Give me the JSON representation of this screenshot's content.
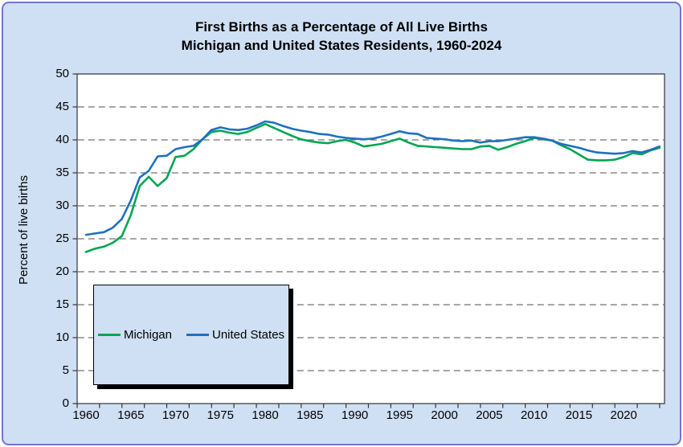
{
  "window": {
    "page_background": "#ffffff",
    "card_background": "#cfe0f4",
    "card_border_color": "#7476c8",
    "plot_background": "#ffffff",
    "gridline_color": "#707070"
  },
  "title": {
    "line1": "First Births as a Percentage of All Live Births",
    "line2": "Michigan and United States Residents, 1960-2024"
  },
  "y_axis": {
    "label": "Percent of live births",
    "tick_values": [
      0,
      5,
      10,
      15,
      20,
      25,
      30,
      35,
      40,
      45,
      50
    ],
    "min": 0,
    "max": 50
  },
  "x_axis": {
    "tick_labels": [
      1960,
      1965,
      1970,
      1975,
      1980,
      1985,
      1990,
      1995,
      2000,
      2005,
      2010,
      2015,
      2020
    ],
    "min": 1960,
    "max": 2024
  },
  "legend": {
    "items": [
      {
        "label": "Michigan",
        "color": "#00a651"
      },
      {
        "label": "United States",
        "color": "#1f70c1"
      }
    ]
  },
  "chart_data": {
    "type": "line",
    "title": "First Births as a Percentage of All Live Births",
    "subtitle": "Michigan and United States Residents, 1960-2024",
    "xlabel": "",
    "ylabel": "Percent of live births",
    "ylim": [
      0,
      50
    ],
    "grid": "horizontal-dashed",
    "legend_position": "inside-lower-left",
    "x": [
      1960,
      1961,
      1962,
      1963,
      1964,
      1965,
      1966,
      1967,
      1968,
      1969,
      1970,
      1971,
      1972,
      1973,
      1974,
      1975,
      1976,
      1977,
      1978,
      1979,
      1980,
      1981,
      1982,
      1983,
      1984,
      1985,
      1986,
      1987,
      1988,
      1989,
      1990,
      1991,
      1992,
      1993,
      1994,
      1995,
      1996,
      1997,
      1998,
      1999,
      2000,
      2001,
      2002,
      2003,
      2004,
      2005,
      2006,
      2007,
      2008,
      2009,
      2010,
      2011,
      2012,
      2013,
      2014,
      2015,
      2016,
      2017,
      2018,
      2019,
      2020,
      2021,
      2022,
      2023,
      2024
    ],
    "series": [
      {
        "name": "Michigan",
        "color": "#00a651",
        "values": [
          23.0,
          23.5,
          23.8,
          24.4,
          25.4,
          28.6,
          33.0,
          34.4,
          33.0,
          34.2,
          37.4,
          37.6,
          38.6,
          40.1,
          41.2,
          41.4,
          41.1,
          40.9,
          41.2,
          41.8,
          42.4,
          41.8,
          41.2,
          40.6,
          40.1,
          39.8,
          39.6,
          39.5,
          39.8,
          40.0,
          39.6,
          39.0,
          39.2,
          39.4,
          39.8,
          40.2,
          39.6,
          39.1,
          39.0,
          38.9,
          38.8,
          38.7,
          38.6,
          38.6,
          39.0,
          39.1,
          38.5,
          38.9,
          39.4,
          39.8,
          40.3,
          40.1,
          39.9,
          39.2,
          38.6,
          37.8,
          37.0,
          36.9,
          36.9,
          37.0,
          37.4,
          38.0,
          37.8,
          38.4,
          38.8
        ]
      },
      {
        "name": "United States",
        "color": "#1f70c1",
        "values": [
          25.6,
          25.8,
          26.0,
          26.7,
          28.0,
          30.8,
          34.3,
          35.3,
          37.5,
          37.6,
          38.6,
          38.9,
          39.1,
          40.1,
          41.5,
          41.9,
          41.6,
          41.5,
          41.7,
          42.2,
          42.8,
          42.6,
          42.1,
          41.7,
          41.4,
          41.2,
          40.9,
          40.8,
          40.5,
          40.3,
          40.2,
          40.1,
          40.2,
          40.5,
          40.9,
          41.3,
          41.0,
          40.9,
          40.3,
          40.2,
          40.1,
          39.9,
          39.8,
          39.9,
          39.6,
          39.8,
          39.8,
          40.0,
          40.2,
          40.4,
          40.4,
          40.2,
          39.9,
          39.4,
          39.1,
          38.8,
          38.4,
          38.1,
          38.0,
          37.9,
          38.0,
          38.3,
          38.1,
          38.5,
          39.0
        ]
      }
    ]
  }
}
